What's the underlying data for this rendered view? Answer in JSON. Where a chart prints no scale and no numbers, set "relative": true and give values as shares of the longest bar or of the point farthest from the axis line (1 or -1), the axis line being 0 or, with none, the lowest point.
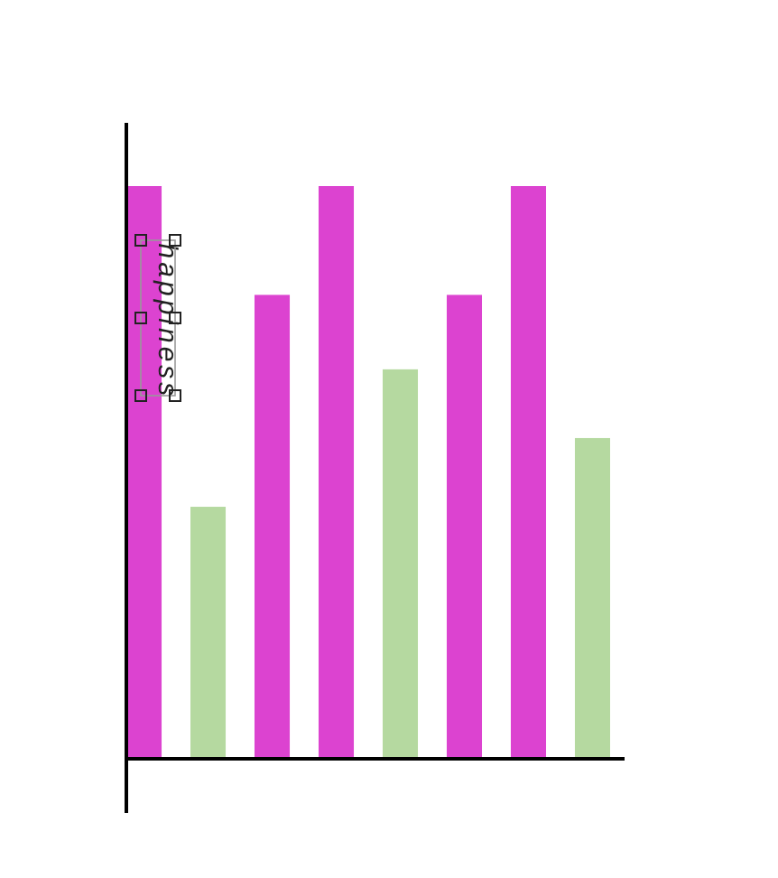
{
  "chart_data": {
    "type": "bar",
    "relative": true,
    "ylabel": "happiness",
    "categories": [
      null,
      null,
      null,
      null,
      null,
      null,
      null,
      null
    ],
    "values": [
      1,
      0.44,
      0.81,
      1,
      0.68,
      0.81,
      1,
      0.56
    ],
    "colors": [
      "#dc43d0",
      "#b5d9a0",
      "#dc43d0",
      "#dc43d0",
      "#b5d9a0",
      "#dc43d0",
      "#dc43d0",
      "#b5d9a0"
    ]
  }
}
